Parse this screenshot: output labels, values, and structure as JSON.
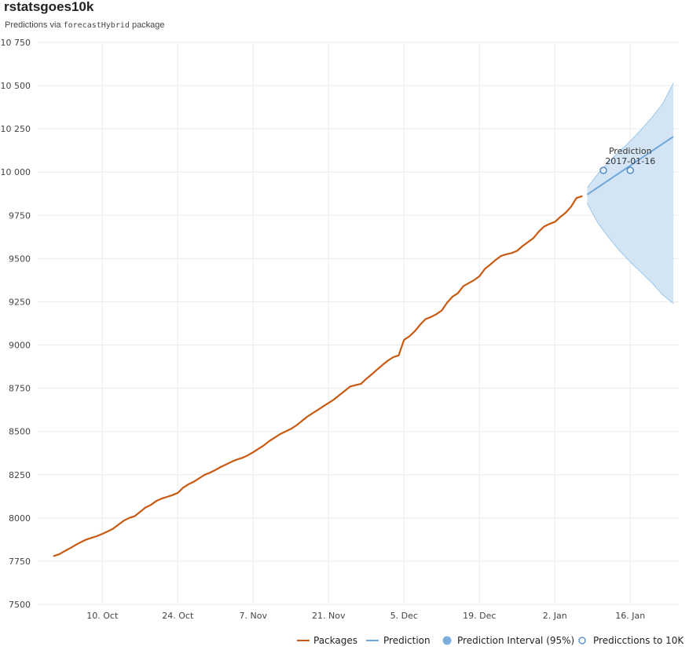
{
  "header": {
    "title": "rstatsgoes10k",
    "subtitle_prefix": "Predictions via ",
    "subtitle_code": "forecastHybrid",
    "subtitle_suffix": " package"
  },
  "colors": {
    "packages": "#c85a12",
    "prediction": "#6fa6da",
    "interval_fill": "#d3e5f5",
    "interval_edge": "#8fbde6",
    "marker": "#4a86c8",
    "grid": "#ebebeb"
  },
  "chart_data": {
    "type": "line",
    "title": "rstatsgoes10k",
    "xlabel": "",
    "ylabel": "",
    "ylim": [
      7500,
      10750
    ],
    "xlim": [
      "2016-09-28",
      "2017-01-25"
    ],
    "grid": true,
    "legend_position": "bottom-right",
    "y_ticks": [
      {
        "value": 7500,
        "label": "7500"
      },
      {
        "value": 7750,
        "label": "7750"
      },
      {
        "value": 8000,
        "label": "8000"
      },
      {
        "value": 8250,
        "label": "8250"
      },
      {
        "value": 8500,
        "label": "8500"
      },
      {
        "value": 8750,
        "label": "8750"
      },
      {
        "value": 9000,
        "label": "9000"
      },
      {
        "value": 9250,
        "label": "9250"
      },
      {
        "value": 9500,
        "label": "9500"
      },
      {
        "value": 9750,
        "label": "9750"
      },
      {
        "value": 10000,
        "label": "10 000"
      },
      {
        "value": 10250,
        "label": "10 250"
      },
      {
        "value": 10500,
        "label": "10 500"
      },
      {
        "value": 10750,
        "label": "10 750"
      }
    ],
    "x_ticks": [
      {
        "date": "2016-10-10",
        "label": "10. Oct"
      },
      {
        "date": "2016-10-24",
        "label": "24. Oct"
      },
      {
        "date": "2016-11-07",
        "label": "7. Nov"
      },
      {
        "date": "2016-11-21",
        "label": "21. Nov"
      },
      {
        "date": "2016-12-05",
        "label": "5. Dec"
      },
      {
        "date": "2016-12-19",
        "label": "19. Dec"
      },
      {
        "date": "2017-01-02",
        "label": "2. Jan"
      },
      {
        "date": "2017-01-16",
        "label": "16. Jan"
      }
    ],
    "series": [
      {
        "name": "Packages",
        "type": "line",
        "points": [
          [
            "2016-10-01",
            7780
          ],
          [
            "2016-10-02",
            7790
          ],
          [
            "2016-10-03",
            7808
          ],
          [
            "2016-10-04",
            7825
          ],
          [
            "2016-10-05",
            7843
          ],
          [
            "2016-10-06",
            7860
          ],
          [
            "2016-10-07",
            7875
          ],
          [
            "2016-10-08",
            7885
          ],
          [
            "2016-10-09",
            7895
          ],
          [
            "2016-10-10",
            7908
          ],
          [
            "2016-10-11",
            7922
          ],
          [
            "2016-10-12",
            7938
          ],
          [
            "2016-10-13",
            7962
          ],
          [
            "2016-10-14",
            7985
          ],
          [
            "2016-10-15",
            8000
          ],
          [
            "2016-10-16",
            8010
          ],
          [
            "2016-10-17",
            8035
          ],
          [
            "2016-10-18",
            8060
          ],
          [
            "2016-10-19",
            8075
          ],
          [
            "2016-10-20",
            8098
          ],
          [
            "2016-10-21",
            8112
          ],
          [
            "2016-10-22",
            8122
          ],
          [
            "2016-10-23",
            8132
          ],
          [
            "2016-10-24",
            8145
          ],
          [
            "2016-10-25",
            8175
          ],
          [
            "2016-10-26",
            8195
          ],
          [
            "2016-10-27",
            8210
          ],
          [
            "2016-10-28",
            8230
          ],
          [
            "2016-10-29",
            8250
          ],
          [
            "2016-10-30",
            8262
          ],
          [
            "2016-10-31",
            8278
          ],
          [
            "2016-11-01",
            8295
          ],
          [
            "2016-11-02",
            8310
          ],
          [
            "2016-11-03",
            8325
          ],
          [
            "2016-11-04",
            8338
          ],
          [
            "2016-11-05",
            8348
          ],
          [
            "2016-11-06",
            8362
          ],
          [
            "2016-11-07",
            8380
          ],
          [
            "2016-11-08",
            8400
          ],
          [
            "2016-11-09",
            8420
          ],
          [
            "2016-11-10",
            8445
          ],
          [
            "2016-11-11",
            8465
          ],
          [
            "2016-11-12",
            8485
          ],
          [
            "2016-11-13",
            8500
          ],
          [
            "2016-11-14",
            8515
          ],
          [
            "2016-11-15",
            8535
          ],
          [
            "2016-11-16",
            8560
          ],
          [
            "2016-11-17",
            8585
          ],
          [
            "2016-11-18",
            8605
          ],
          [
            "2016-11-19",
            8625
          ],
          [
            "2016-11-20",
            8645
          ],
          [
            "2016-11-21",
            8665
          ],
          [
            "2016-11-22",
            8685
          ],
          [
            "2016-11-23",
            8710
          ],
          [
            "2016-11-24",
            8735
          ],
          [
            "2016-11-25",
            8760
          ],
          [
            "2016-11-26",
            8768
          ],
          [
            "2016-11-27",
            8775
          ],
          [
            "2016-11-28",
            8805
          ],
          [
            "2016-11-29",
            8830
          ],
          [
            "2016-11-30",
            8858
          ],
          [
            "2016-12-01",
            8885
          ],
          [
            "2016-12-02",
            8910
          ],
          [
            "2016-12-03",
            8930
          ],
          [
            "2016-12-04",
            8940
          ],
          [
            "2016-12-05",
            9030
          ],
          [
            "2016-12-06",
            9050
          ],
          [
            "2016-12-07",
            9080
          ],
          [
            "2016-12-08",
            9118
          ],
          [
            "2016-12-09",
            9150
          ],
          [
            "2016-12-10",
            9162
          ],
          [
            "2016-12-11",
            9178
          ],
          [
            "2016-12-12",
            9200
          ],
          [
            "2016-12-13",
            9245
          ],
          [
            "2016-12-14",
            9280
          ],
          [
            "2016-12-15",
            9300
          ],
          [
            "2016-12-16",
            9340
          ],
          [
            "2016-12-17",
            9358
          ],
          [
            "2016-12-18",
            9375
          ],
          [
            "2016-12-19",
            9398
          ],
          [
            "2016-12-20",
            9440
          ],
          [
            "2016-12-21",
            9465
          ],
          [
            "2016-12-22",
            9492
          ],
          [
            "2016-12-23",
            9515
          ],
          [
            "2016-12-24",
            9525
          ],
          [
            "2016-12-25",
            9532
          ],
          [
            "2016-12-26",
            9545
          ],
          [
            "2016-12-27",
            9572
          ],
          [
            "2016-12-28",
            9595
          ],
          [
            "2016-12-29",
            9618
          ],
          [
            "2016-12-30",
            9655
          ],
          [
            "2016-12-31",
            9685
          ],
          [
            "2017-01-01",
            9700
          ],
          [
            "2017-01-02",
            9712
          ],
          [
            "2017-01-03",
            9740
          ],
          [
            "2017-01-04",
            9765
          ],
          [
            "2017-01-05",
            9800
          ],
          [
            "2017-01-06",
            9850
          ],
          [
            "2017-01-07",
            9860
          ]
        ]
      },
      {
        "name": "Prediction",
        "type": "line",
        "points": [
          [
            "2017-01-08",
            9870
          ],
          [
            "2017-01-24",
            10205
          ]
        ]
      },
      {
        "name": "Prediction Interval (95%)",
        "type": "area",
        "upper": [
          [
            "2017-01-08",
            9910
          ],
          [
            "2017-01-10",
            9990
          ],
          [
            "2017-01-12",
            10060
          ],
          [
            "2017-01-14",
            10120
          ],
          [
            "2017-01-16",
            10180
          ],
          [
            "2017-01-18",
            10245
          ],
          [
            "2017-01-20",
            10315
          ],
          [
            "2017-01-22",
            10395
          ],
          [
            "2017-01-24",
            10515
          ]
        ],
        "lower": [
          [
            "2017-01-08",
            9820
          ],
          [
            "2017-01-09",
            9760
          ],
          [
            "2017-01-10",
            9705
          ],
          [
            "2017-01-12",
            9620
          ],
          [
            "2017-01-14",
            9545
          ],
          [
            "2017-01-16",
            9480
          ],
          [
            "2017-01-18",
            9420
          ],
          [
            "2017-01-20",
            9360
          ],
          [
            "2017-01-22",
            9290
          ],
          [
            "2017-01-24",
            9240
          ]
        ]
      },
      {
        "name": "Predicctions to 10K",
        "type": "scatter",
        "points": [
          [
            "2017-01-11",
            10010
          ],
          [
            "2017-01-16",
            10010
          ]
        ]
      }
    ],
    "annotations": [
      {
        "lines": [
          "Prediction",
          "2017-01-16"
        ],
        "date": "2017-01-16",
        "value": 10010
      }
    ],
    "legend": [
      {
        "label": "Packages",
        "symbol": "line",
        "color": "#c85a12"
      },
      {
        "label": "Prediction",
        "symbol": "line",
        "color": "#6fa6da"
      },
      {
        "label": "Prediction Interval (95%)",
        "symbol": "dot",
        "color": "#7aaede"
      },
      {
        "label": "Predicctions to 10K",
        "symbol": "ring",
        "color": "#4a86c8"
      }
    ]
  }
}
